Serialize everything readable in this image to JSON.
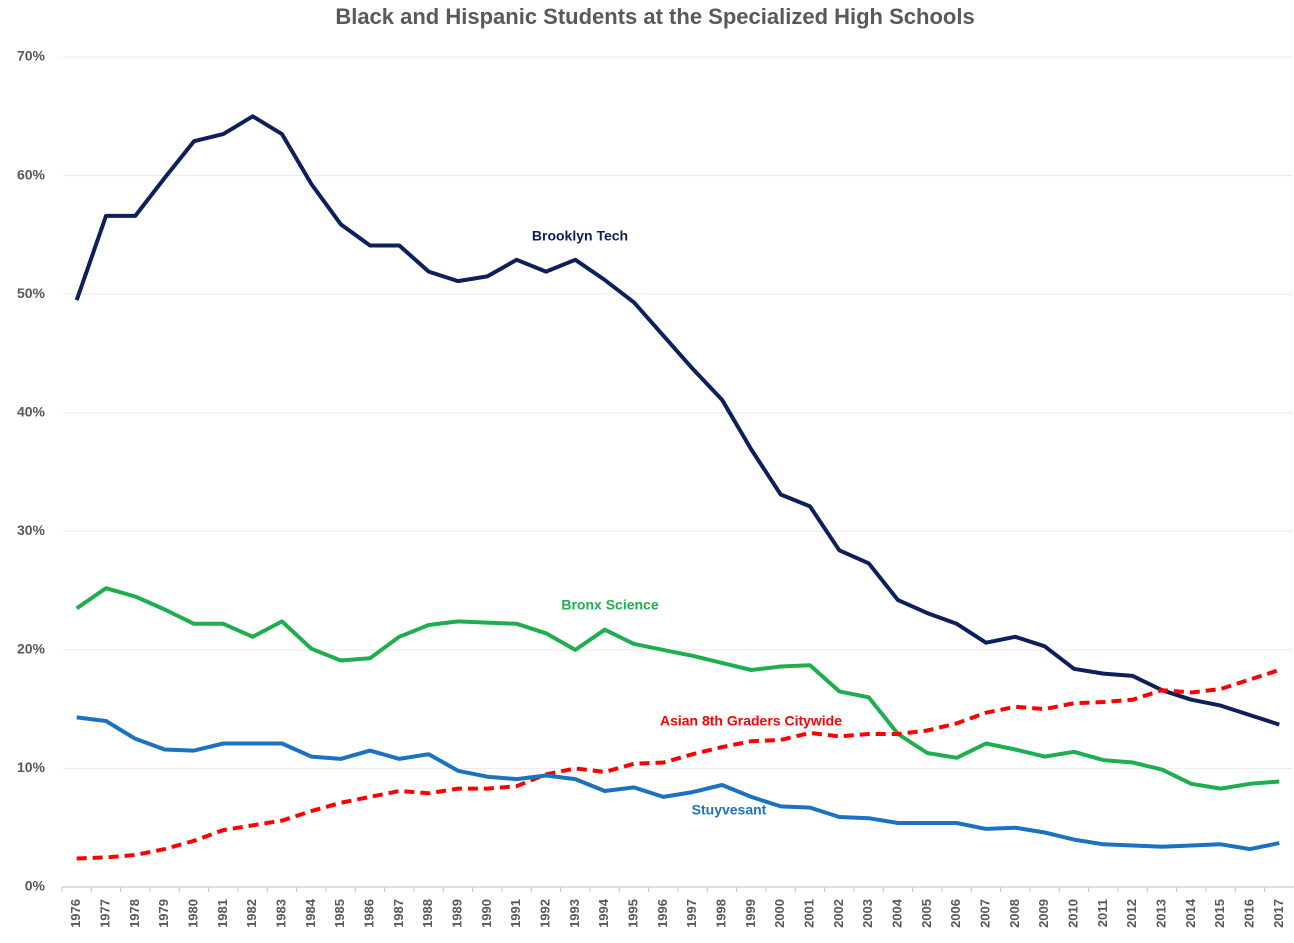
{
  "chart_data": {
    "type": "line",
    "title": "Black and Hispanic Students at the Specialized High Schools",
    "categories": [
      "1976",
      "1977",
      "1978",
      "1979",
      "1980",
      "1981",
      "1982",
      "1983",
      "1984",
      "1985",
      "1986",
      "1987",
      "1988",
      "1989",
      "1990",
      "1991",
      "1992",
      "1993",
      "1994",
      "1995",
      "1996",
      "1997",
      "1998",
      "1999",
      "2000",
      "2001",
      "2002",
      "2003",
      "2004",
      "2005",
      "2006",
      "2007",
      "2008",
      "2009",
      "2010",
      "2011",
      "2012",
      "2013",
      "2014",
      "2015",
      "2016",
      "2017"
    ],
    "series": [
      {
        "name": "Brooklyn Tech",
        "color": "#0d1f5c",
        "dashed": false,
        "values": [
          49.5,
          56.6,
          56.6,
          59.8,
          62.9,
          63.5,
          65.0,
          63.5,
          59.3,
          55.9,
          54.1,
          54.1,
          51.9,
          51.1,
          51.5,
          52.9,
          51.9,
          52.9,
          51.2,
          49.3,
          46.5,
          43.7,
          41.1,
          36.9,
          33.1,
          32.1,
          28.4,
          27.3,
          24.2,
          23.1,
          22.2,
          20.6,
          21.1,
          20.3,
          18.4,
          18.0,
          17.8,
          16.6,
          15.8,
          15.3,
          14.5,
          13.7
        ]
      },
      {
        "name": "Bronx Science",
        "color": "#1fae4e",
        "dashed": false,
        "values": [
          23.5,
          25.2,
          24.5,
          23.4,
          22.2,
          22.2,
          21.1,
          22.4,
          20.1,
          19.1,
          19.3,
          21.1,
          22.1,
          22.4,
          22.3,
          22.2,
          21.4,
          20.0,
          21.7,
          20.5,
          20.0,
          19.5,
          18.9,
          18.3,
          18.6,
          18.7,
          16.5,
          16.0,
          12.9,
          11.3,
          10.9,
          12.1,
          11.6,
          11.0,
          11.4,
          10.7,
          10.5,
          9.9,
          8.7,
          8.3,
          8.7,
          8.9
        ]
      },
      {
        "name": "Asian 8th Graders Citywide",
        "color": "#ff0000",
        "dashed": true,
        "values": [
          2.4,
          2.5,
          2.7,
          3.2,
          3.9,
          4.8,
          5.2,
          5.6,
          6.4,
          7.1,
          7.6,
          8.1,
          7.9,
          8.3,
          8.3,
          8.5,
          9.5,
          10.0,
          9.7,
          10.4,
          10.5,
          11.2,
          11.8,
          12.3,
          12.4,
          13.0,
          12.7,
          12.9,
          12.9,
          13.2,
          13.8,
          14.7,
          15.2,
          15.0,
          15.5,
          15.6,
          15.8,
          16.6,
          16.4,
          16.7,
          17.5,
          18.3
        ]
      },
      {
        "name": "Stuyvesant",
        "color": "#1a72c0",
        "dashed": false,
        "values": [
          14.3,
          14.0,
          12.5,
          11.6,
          11.5,
          12.1,
          12.1,
          12.1,
          11.0,
          10.8,
          11.5,
          10.8,
          11.2,
          9.8,
          9.3,
          9.1,
          9.4,
          9.1,
          8.1,
          8.4,
          7.6,
          8.0,
          8.6,
          7.6,
          6.8,
          6.7,
          5.9,
          5.8,
          5.4,
          5.4,
          5.4,
          4.9,
          5.0,
          4.6,
          4.0,
          3.6,
          3.5,
          3.4,
          3.5,
          3.6,
          3.2,
          3.7
        ]
      }
    ],
    "ylim": [
      0,
      70
    ],
    "yticks": [
      {
        "value": 0,
        "label": "0%"
      },
      {
        "value": 10,
        "label": "10%"
      },
      {
        "value": 20,
        "label": "20%"
      },
      {
        "value": 30,
        "label": "30%"
      },
      {
        "value": 40,
        "label": "40%"
      },
      {
        "value": 50,
        "label": "50%"
      },
      {
        "value": 60,
        "label": "60%"
      },
      {
        "value": 70,
        "label": "70%"
      }
    ],
    "grid": true
  }
}
